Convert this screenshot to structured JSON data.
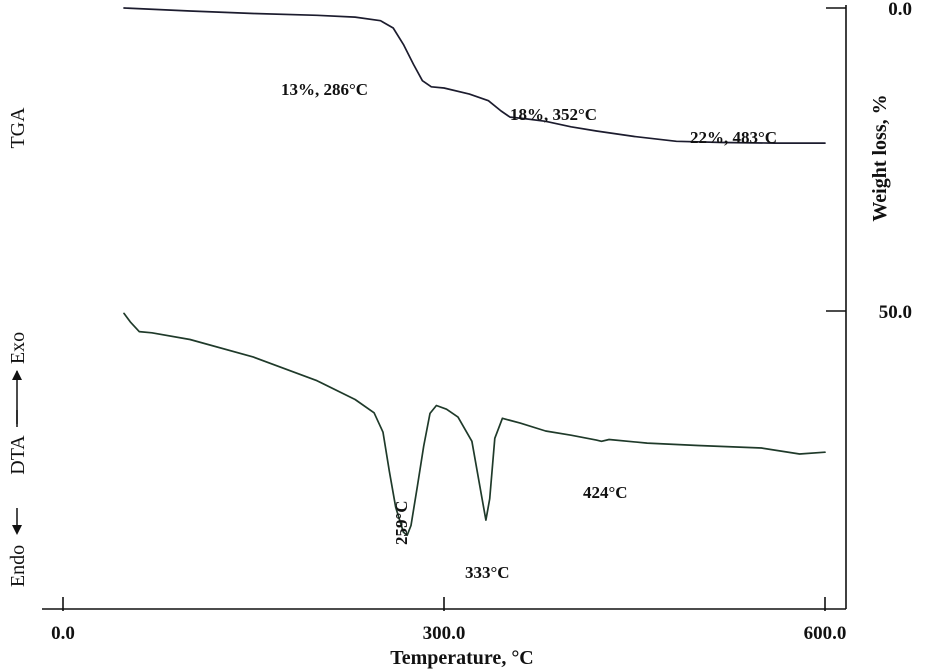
{
  "chart_data": {
    "type": "line",
    "xlabel": "Temperature, °C",
    "x_ticks": [
      "0.0",
      "300.0",
      "600.0"
    ],
    "xlim": [
      0,
      600
    ],
    "right_axis": {
      "label": "Weight loss, %",
      "ticks": [
        "0.0",
        "50.0"
      ],
      "range": [
        0,
        50
      ]
    },
    "left_labels": {
      "tga": "TGA",
      "dta": "Endo ⟵ DTA ⟶ Exo",
      "dta_endo": "Endo",
      "dta_mid": "DTA",
      "dta_exo": "Exo"
    },
    "grid": false,
    "series": [
      {
        "name": "TGA",
        "color": "#1c1c2e",
        "units": "weight loss, %",
        "x": [
          48,
          100,
          150,
          200,
          230,
          250,
          260,
          268,
          276,
          283,
          290,
          300,
          320,
          335,
          345,
          352,
          365,
          380,
          400,
          420,
          450,
          483,
          520,
          560,
          600
        ],
        "y": [
          0.0,
          0.5,
          0.9,
          1.2,
          1.5,
          2.1,
          3.3,
          6.0,
          9.3,
          12.0,
          13.0,
          13.2,
          14.2,
          15.3,
          17.0,
          18.0,
          18.3,
          18.7,
          19.6,
          20.3,
          21.2,
          22.0,
          22.2,
          22.3,
          22.3
        ]
      },
      {
        "name": "DTA",
        "color": "#1f3a2a",
        "units": "relative (endo down, exo up)",
        "x": [
          48,
          53,
          60,
          70,
          100,
          150,
          200,
          230,
          245,
          252,
          257,
          262,
          268,
          271,
          274,
          279,
          284,
          289,
          294,
          302,
          311,
          322,
          330,
          333,
          336,
          340,
          346,
          360,
          380,
          400,
          420,
          424,
          430,
          460,
          500,
          550,
          580,
          600
        ],
        "y": [
          50.4,
          51.8,
          53.4,
          53.6,
          54.7,
          57.6,
          61.5,
          64.6,
          66.8,
          70.0,
          76.5,
          82.4,
          86.5,
          87.0,
          85.4,
          79.0,
          72.3,
          66.9,
          65.6,
          66.2,
          67.5,
          71.5,
          81.0,
          84.5,
          81.0,
          71.0,
          67.7,
          68.5,
          69.8,
          70.5,
          71.3,
          71.5,
          71.2,
          71.8,
          72.2,
          72.6,
          73.6,
          73.3
        ]
      }
    ],
    "annotations": [
      {
        "text": "13%, 286°C",
        "series": "TGA",
        "x": 286
      },
      {
        "text": "18%, 352°C",
        "series": "TGA",
        "x": 352
      },
      {
        "text": "22%, 483°C",
        "series": "TGA",
        "x": 483
      },
      {
        "text": "259°C",
        "series": "DTA",
        "x": 259
      },
      {
        "text": "333°C",
        "series": "DTA",
        "x": 333
      },
      {
        "text": "424°C",
        "series": "DTA",
        "x": 424
      }
    ]
  }
}
